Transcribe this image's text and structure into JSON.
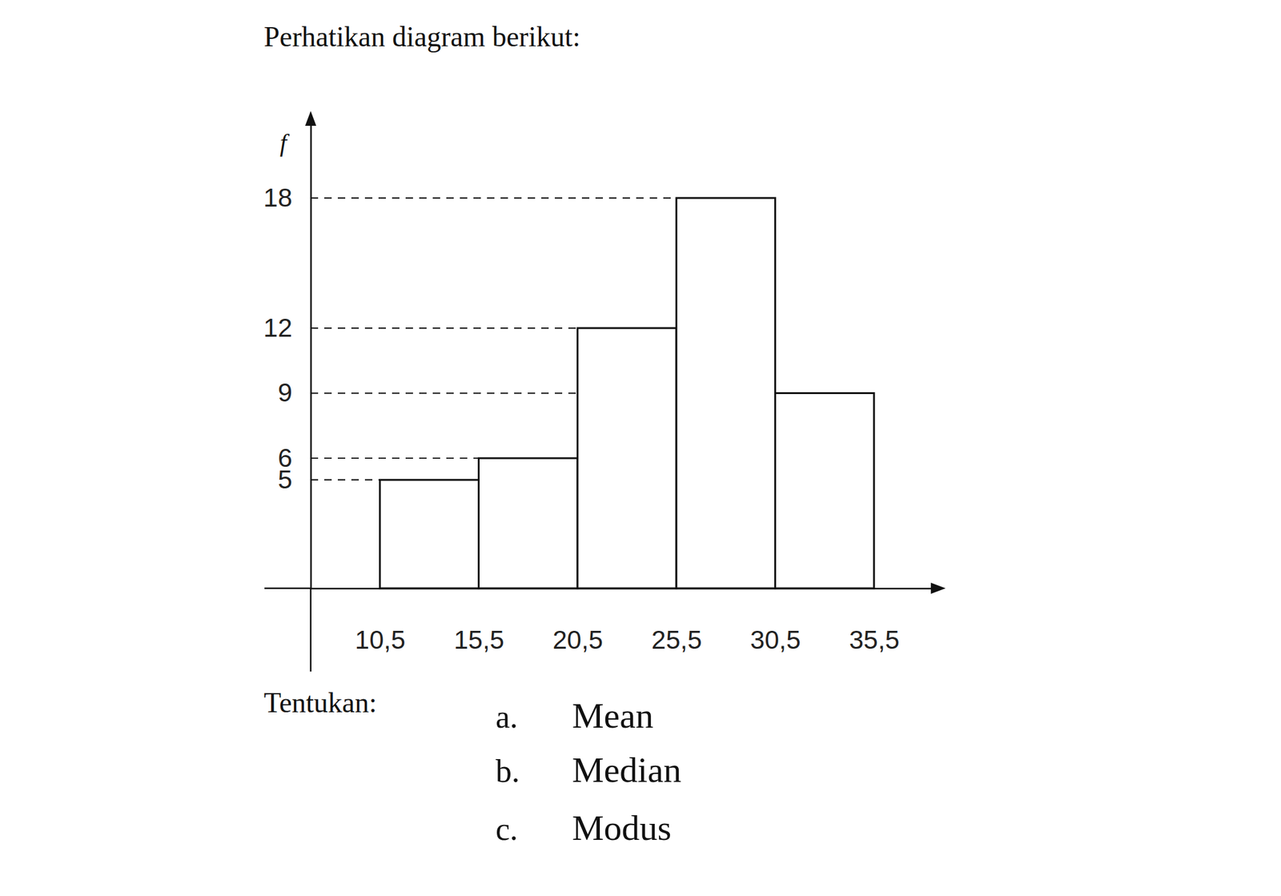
{
  "chart_data": {
    "type": "histogram",
    "title": "Perhatikan diagram berikut:",
    "y_label": "f",
    "bins": [
      10.5,
      15.5,
      20.5,
      25.5,
      30.5,
      35.5
    ],
    "values": [
      5,
      6,
      12,
      18,
      9
    ],
    "color": "#ffffff",
    "xlim": [
      7,
      38.5
    ],
    "xticks": [
      {
        "value": 10.5,
        "label": "10,5"
      },
      {
        "value": 15.5,
        "label": "15,5"
      },
      {
        "value": 20.5,
        "label": "20,5"
      },
      {
        "value": 25.5,
        "label": "25,5"
      },
      {
        "value": 30.5,
        "label": "30,5"
      },
      {
        "value": 35.5,
        "label": "35,5"
      }
    ],
    "ylim": [
      0,
      21.5
    ],
    "yticks": [
      5,
      6,
      9,
      12,
      18
    ],
    "grid": true,
    "question": "Tentukan:",
    "tasks": [
      {
        "letter": "a.",
        "text": "Mean"
      },
      {
        "letter": "b.",
        "text": "Median"
      },
      {
        "letter": "c.",
        "text": "Modus"
      }
    ]
  }
}
